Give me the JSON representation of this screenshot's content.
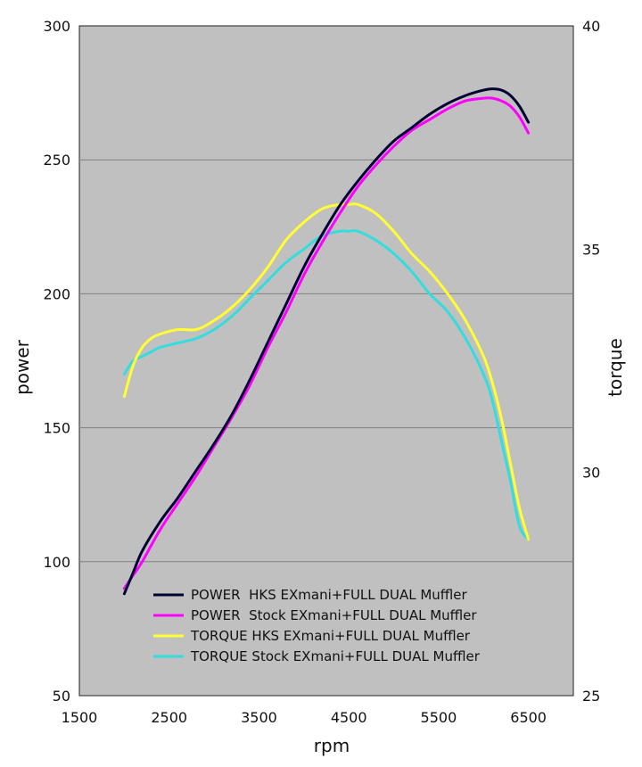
{
  "chart_data": {
    "type": "line",
    "title": "",
    "xlabel": "rpm",
    "ylabel": "power",
    "y2label": "torque",
    "xlim": [
      1500,
      7000
    ],
    "ylim": [
      50,
      300
    ],
    "y2lim": [
      25,
      40
    ],
    "x_ticks": [
      1500,
      2500,
      3500,
      4500,
      5500,
      6500
    ],
    "y_ticks": [
      50,
      100,
      150,
      200,
      250,
      300
    ],
    "y2_ticks": [
      25,
      30,
      35,
      40
    ],
    "grid": "horizontal",
    "plot_background": "#c0c0c0",
    "legend_position": "bottom-right",
    "series": [
      {
        "name": "POWER  HKS EXmani+FULL DUAL Muffler",
        "axis": "left",
        "color": "#000033",
        "x": [
          2000,
          2100,
          2200,
          2400,
          2600,
          2800,
          3000,
          3200,
          3400,
          3600,
          3800,
          4000,
          4200,
          4400,
          4600,
          4800,
          5000,
          5200,
          5400,
          5600,
          5800,
          6000,
          6100,
          6200,
          6300,
          6400,
          6500
        ],
        "values": [
          88,
          96,
          104,
          115,
          124,
          134,
          144,
          155,
          168,
          182,
          196,
          210,
          222,
          233,
          242,
          250,
          257,
          262,
          267,
          271,
          274,
          276,
          276.5,
          276,
          274,
          270,
          264
        ]
      },
      {
        "name": "POWER  Stock EXmani+FULL DUAL Muffler",
        "axis": "left",
        "color": "#ff00ff",
        "x": [
          2000,
          2100,
          2200,
          2400,
          2600,
          2800,
          3000,
          3200,
          3400,
          3600,
          3800,
          4000,
          4200,
          4400,
          4600,
          4800,
          5000,
          5200,
          5400,
          5600,
          5800,
          6000,
          6100,
          6200,
          6300,
          6400,
          6500
        ],
        "values": [
          90,
          95,
          100,
          112,
          122,
          132,
          143,
          154,
          166,
          180,
          193,
          207,
          219,
          230,
          240,
          248,
          255,
          261,
          265,
          269,
          272,
          273,
          273,
          272,
          270,
          266,
          260
        ]
      },
      {
        "name": "TORQUE HKS EXmani+FULL DUAL Muffler",
        "axis": "right",
        "color": "#ffff33",
        "x": [
          2000,
          2100,
          2200,
          2300,
          2400,
          2600,
          2800,
          3000,
          3200,
          3400,
          3600,
          3800,
          4000,
          4200,
          4400,
          4500,
          4600,
          4800,
          5000,
          5200,
          5400,
          5600,
          5800,
          6000,
          6100,
          6200,
          6300,
          6400,
          6500
        ],
        "values": [
          31.7,
          32.4,
          32.8,
          33.0,
          33.1,
          33.2,
          33.2,
          33.4,
          33.7,
          34.1,
          34.6,
          35.2,
          35.6,
          35.9,
          36.0,
          36.0,
          36.0,
          35.8,
          35.4,
          34.9,
          34.5,
          34.0,
          33.4,
          32.6,
          32.0,
          31.2,
          30.2,
          29.2,
          28.5
        ]
      },
      {
        "name": "TORQUE Stock EXmani+FULL DUAL Muffler",
        "axis": "right",
        "color": "#33dddd",
        "x": [
          2000,
          2100,
          2200,
          2300,
          2400,
          2600,
          2800,
          3000,
          3200,
          3400,
          3600,
          3800,
          4000,
          4200,
          4400,
          4500,
          4600,
          4800,
          5000,
          5200,
          5400,
          5600,
          5800,
          6000,
          6100,
          6200,
          6300,
          6400,
          6500
        ],
        "values": [
          32.2,
          32.5,
          32.6,
          32.7,
          32.8,
          32.9,
          33.0,
          33.2,
          33.5,
          33.9,
          34.3,
          34.7,
          35.0,
          35.3,
          35.4,
          35.4,
          35.4,
          35.2,
          34.9,
          34.5,
          34.0,
          33.6,
          33.0,
          32.2,
          31.6,
          30.7,
          29.8,
          28.8,
          28.5
        ]
      }
    ]
  }
}
